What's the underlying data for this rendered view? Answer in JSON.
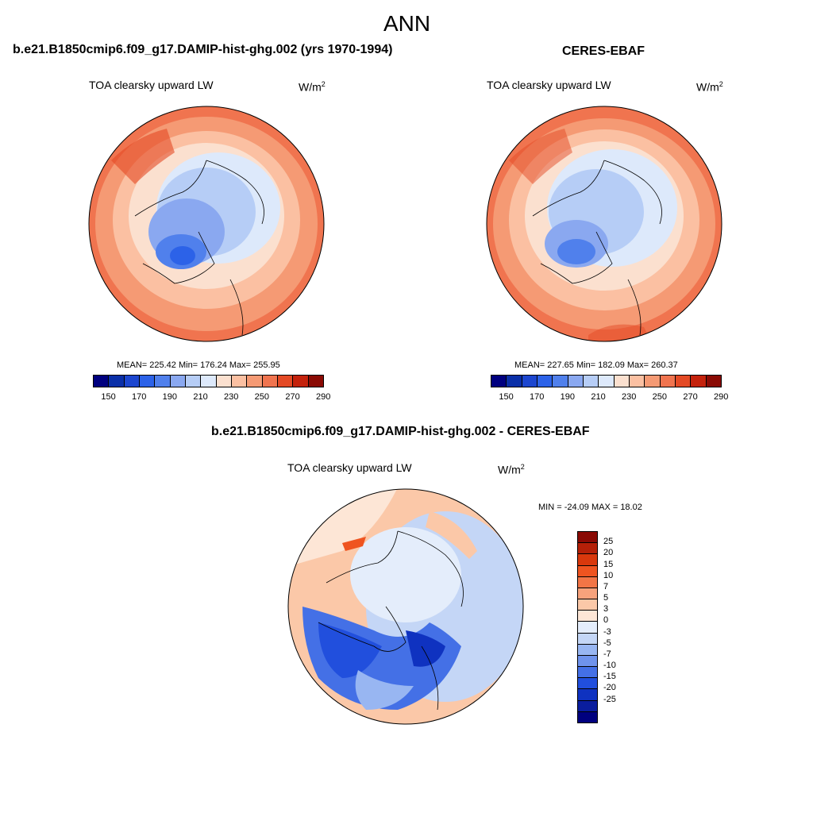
{
  "page": {
    "title": "ANN"
  },
  "panels": [
    {
      "case_title": "b.e21.B1850cmip6.f09_g17.DAMIP-hist-ghg.002 (yrs 1970-1994)",
      "variable": "TOA clearsky upward LW",
      "units_base": "W/m",
      "units_exp": "2",
      "stats": "MEAN= 225.42  Min= 176.24  Max= 255.95"
    },
    {
      "case_title": "CERES-EBAF",
      "variable": "TOA clearsky upward LW",
      "units_base": "W/m",
      "units_exp": "2",
      "stats": "MEAN= 227.65  Min= 182.09  Max= 260.37"
    }
  ],
  "difference": {
    "title": "b.e21.B1850cmip6.f09_g17.DAMIP-hist-ghg.002 - CERES-EBAF",
    "variable": "TOA clearsky upward LW",
    "units_base": "W/m",
    "units_exp": "2",
    "minmax": "MIN = -24.09 MAX =  18.02"
  },
  "colorbar_abs": {
    "colors": [
      "#00007f",
      "#0a2fa8",
      "#1c46cf",
      "#2c62e8",
      "#5080ec",
      "#8aa8f0",
      "#b6cdf6",
      "#dde9fb",
      "#fbe0cf",
      "#fbc0a2",
      "#f59a74",
      "#f0744f",
      "#e44a25",
      "#c4220c",
      "#8a0a04"
    ],
    "labels": [
      "150",
      "170",
      "190",
      "210",
      "230",
      "250",
      "270",
      "290"
    ]
  },
  "colorbar_diff": {
    "colors": [
      "#8a0a04",
      "#b52008",
      "#d9380c",
      "#ef5420",
      "#f27546",
      "#f7a27c",
      "#fbc8a8",
      "#fde6d6",
      "#e4edfb",
      "#c4d6f6",
      "#98b6f2",
      "#6f93ec",
      "#4470e6",
      "#214fdd",
      "#0f32c0",
      "#0a1d9e",
      "#00007f"
    ],
    "labels": [
      "25",
      "20",
      "15",
      "10",
      "7",
      "5",
      "3",
      "0",
      "-3",
      "-5",
      "-7",
      "-10",
      "-15",
      "-20",
      "-25"
    ]
  },
  "colors": {
    "land_outline": "#000000",
    "map_border": "#000000"
  }
}
